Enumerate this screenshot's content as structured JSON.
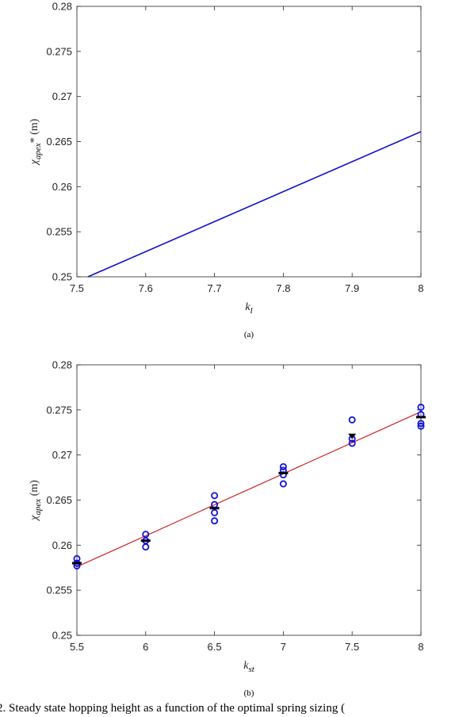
{
  "chart_data": [
    {
      "type": "line",
      "panel_label": "(a)",
      "xlabel": "k_l",
      "ylabel": "χ_apex* (m)",
      "xlim": [
        7.5,
        8
      ],
      "ylim": [
        0.25,
        0.28
      ],
      "xticks": [
        "7.5",
        "7.6",
        "7.7",
        "7.8",
        "7.9",
        "8"
      ],
      "yticks": [
        "0.25",
        "0.255",
        "0.26",
        "0.265",
        "0.27",
        "0.275",
        "0.28"
      ],
      "grid": false,
      "series": [
        {
          "color": "#1010c8",
          "x": [
            7.516,
            8.0
          ],
          "y": [
            0.25,
            0.2661
          ]
        }
      ]
    },
    {
      "type": "scatter",
      "panel_label": "(b)",
      "xlabel": "k_st",
      "ylabel": "χ_apex (m)",
      "xlim": [
        5.5,
        8
      ],
      "ylim": [
        0.25,
        0.28
      ],
      "xticks": [
        "5.5",
        "6",
        "6.5",
        "7",
        "7.5",
        "8"
      ],
      "yticks": [
        "0.25",
        "0.255",
        "0.26",
        "0.265",
        "0.27",
        "0.275",
        "0.28"
      ],
      "grid": false,
      "fit_line": {
        "color": "#cc1010",
        "x": [
          5.5,
          8.0
        ],
        "y": [
          0.2576,
          0.2748
        ]
      },
      "samples": {
        "color": "#1010dd",
        "points": [
          [
            5.5,
            0.2585
          ],
          [
            5.5,
            0.258
          ],
          [
            5.5,
            0.2577
          ],
          [
            6.0,
            0.2612
          ],
          [
            6.0,
            0.2605
          ],
          [
            6.0,
            0.2598
          ],
          [
            6.5,
            0.2655
          ],
          [
            6.5,
            0.2645
          ],
          [
            6.5,
            0.2636
          ],
          [
            6.5,
            0.2627
          ],
          [
            7.0,
            0.2687
          ],
          [
            7.0,
            0.2683
          ],
          [
            7.0,
            0.2678
          ],
          [
            7.0,
            0.2668
          ],
          [
            7.5,
            0.2739
          ],
          [
            7.5,
            0.2718
          ],
          [
            7.5,
            0.2713
          ],
          [
            8.0,
            0.2753
          ],
          [
            8.0,
            0.2745
          ],
          [
            8.0,
            0.2735
          ],
          [
            8.0,
            0.2732
          ]
        ]
      },
      "means": {
        "color": "#000000",
        "points": [
          [
            5.5,
            0.258
          ],
          [
            6.0,
            0.2605
          ],
          [
            6.5,
            0.2641
          ],
          [
            7.0,
            0.268
          ],
          [
            7.5,
            0.2721
          ],
          [
            8.0,
            0.2742
          ]
        ]
      }
    }
  ],
  "caption": "2. Steady state hopping height as a function of the optimal spring sizing ("
}
